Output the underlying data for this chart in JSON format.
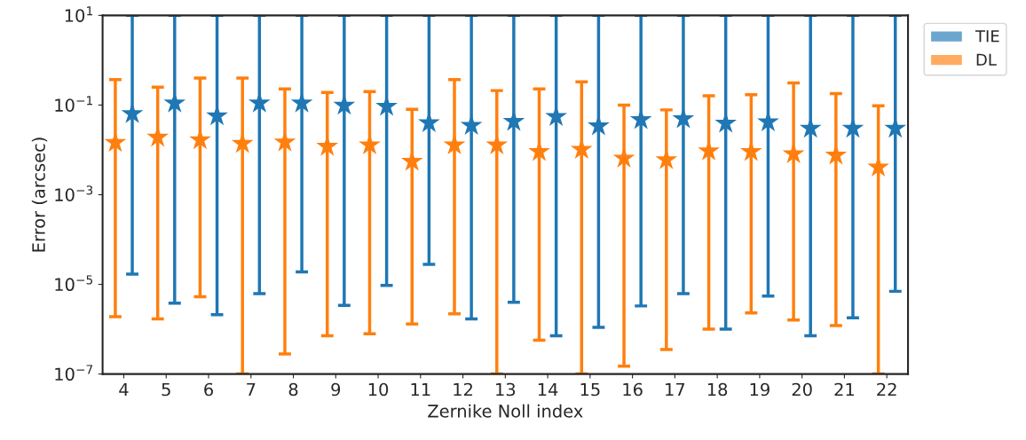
{
  "chart_data": {
    "type": "scatter",
    "xlabel": "Zernike Noll index",
    "ylabel": "Error (arcsec)",
    "log": "y",
    "marker": "star",
    "legend": "top right",
    "grid": false,
    "categories": [
      "4",
      "5",
      "6",
      "7",
      "8",
      "9",
      "10",
      "11",
      "12",
      "13",
      "14",
      "15",
      "16",
      "17",
      "18",
      "19",
      "20",
      "21",
      "22"
    ],
    "ylim": [
      1e-07,
      10
    ],
    "yticks": [
      {
        "value": 1e-07,
        "label": "10$^{−7}$"
      },
      {
        "value": 1e-05,
        "label": "10$^{−5}$"
      },
      {
        "value": 0.001,
        "label": "10$^{−3}$"
      },
      {
        "value": 0.1,
        "label": "10$^{−1}$"
      },
      {
        "value": 10,
        "label": "10$^{1}$"
      }
    ],
    "series": [
      {
        "name": "TIE",
        "color": "#1f77b4",
        "values": [
          0.064,
          0.11,
          0.057,
          0.11,
          0.11,
          0.098,
          0.093,
          0.04,
          0.035,
          0.043,
          0.055,
          0.034,
          0.047,
          0.049,
          0.039,
          0.042,
          0.03,
          0.03,
          0.03
        ],
        "errors": [
          [
            1.7e-05,
            10
          ],
          [
            3.8e-06,
            10
          ],
          [
            2.1e-06,
            10
          ],
          [
            6.2e-06,
            10
          ],
          [
            1.9e-05,
            10
          ],
          [
            3.4e-06,
            10
          ],
          [
            9.5e-06,
            10
          ],
          [
            2.8e-05,
            10
          ],
          [
            1.7e-06,
            10
          ],
          [
            4e-06,
            10
          ],
          [
            7.1e-07,
            10
          ],
          [
            1.1e-06,
            10
          ],
          [
            3.3e-06,
            10
          ],
          [
            6.2e-06,
            10
          ],
          [
            1e-06,
            10
          ],
          [
            5.5e-06,
            10
          ],
          [
            7.1e-07,
            10
          ],
          [
            1.8e-06,
            10
          ],
          [
            7e-06,
            10
          ]
        ]
      },
      {
        "name": "DL",
        "color": "#ff7f0e",
        "values": [
          0.0145,
          0.019,
          0.0166,
          0.0138,
          0.0149,
          0.0119,
          0.0128,
          0.0055,
          0.0128,
          0.0128,
          0.0091,
          0.0102,
          0.0065,
          0.006,
          0.0094,
          0.0091,
          0.0081,
          0.0076,
          0.0041
        ],
        "errors": [
          [
            1.9e-06,
            0.37
          ],
          [
            1.7e-06,
            0.25
          ],
          [
            5.3e-06,
            0.4
          ],
          [
            1e-07,
            0.4
          ],
          [
            2.8e-07,
            0.23
          ],
          [
            7.1e-07,
            0.19
          ],
          [
            7.9e-07,
            0.2
          ],
          [
            1.3e-06,
            0.08
          ],
          [
            2.2e-06,
            0.37
          ],
          [
            1e-07,
            0.21
          ],
          [
            5.7e-07,
            0.23
          ],
          [
            1e-07,
            0.33
          ],
          [
            1.5e-07,
            0.1
          ],
          [
            3.5e-07,
            0.078
          ],
          [
            1e-06,
            0.16
          ],
          [
            2.3e-06,
            0.17
          ],
          [
            1.6e-06,
            0.31
          ],
          [
            1.2e-06,
            0.18
          ],
          [
            1e-07,
            0.096
          ]
        ]
      }
    ]
  }
}
